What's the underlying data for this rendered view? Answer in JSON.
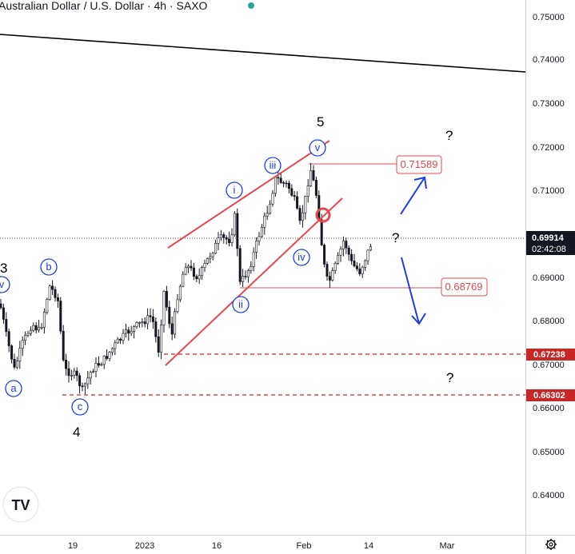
{
  "header": {
    "title": "Australian Dollar / U.S. Dollar · 4h · SAXO"
  },
  "chart_data": {
    "type": "candlestick",
    "ylim": [
      0.633,
      0.757
    ],
    "y_ticks": [
      "0.75000",
      "0.74000",
      "0.73000",
      "0.72000",
      "0.71000",
      "0.70000",
      "0.69000",
      "0.68000",
      "0.67000",
      "0.66000",
      "0.65000",
      "0.64000"
    ],
    "x_ticks": [
      "19",
      "2023",
      "16",
      "Feb",
      "14",
      "Mar"
    ],
    "current_price": {
      "value": "0.69914",
      "countdown": "02:42:08"
    },
    "levels": [
      {
        "value": "0.71589",
        "color": "#e5484d",
        "style": "solid-box"
      },
      {
        "value": "0.68769",
        "color": "#e5484d",
        "style": "solid-box"
      },
      {
        "value": "0.67238",
        "color": "#c62828",
        "style": "dashed"
      },
      {
        "value": "0.66302",
        "color": "#c62828",
        "style": "dashed"
      }
    ],
    "wave_labels_circled": [
      "v",
      "a",
      "b",
      "c",
      "i",
      "ii",
      "iii",
      "iv",
      "v"
    ],
    "wave_labels_plain": [
      "3",
      "4",
      "5"
    ],
    "question_marks": [
      "?",
      "?",
      "?"
    ],
    "colors": {
      "up": "#131722",
      "down": "#131722",
      "channel": "#e5484d",
      "arrow": "#1e3fd8",
      "circle": "#1e3fd8"
    }
  },
  "footer": {
    "logo_text": "TV",
    "settings_icon": "gear-icon"
  }
}
